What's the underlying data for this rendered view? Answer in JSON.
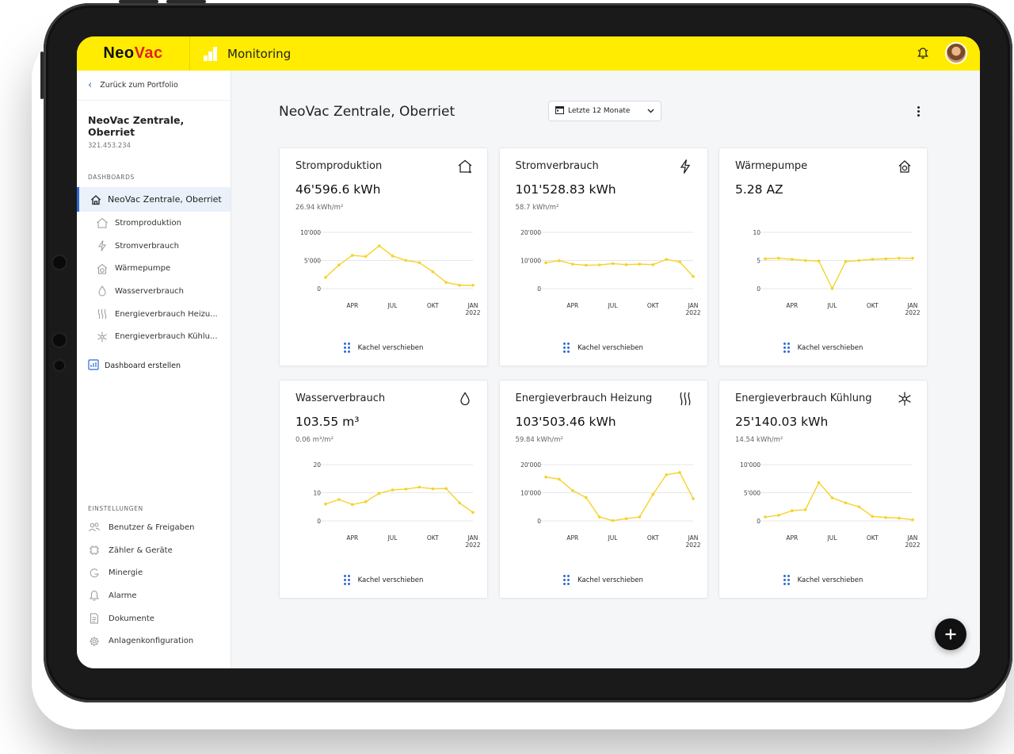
{
  "app": {
    "logo_neo": "Neo",
    "logo_vac": "Vac",
    "title": "Monitoring",
    "brand_color": "#ffec00",
    "accent_color": "#2e6ad1",
    "chart_color": "#f5d32a"
  },
  "sidebar": {
    "back_label": "Zurück zum Portfolio",
    "property_name": "NeoVac Zentrale, Oberriet",
    "property_id": "321.453.234",
    "dashboards_label": "DASHBOARDS",
    "active_dashboard": "NeoVac Zentrale, Oberriet",
    "items": [
      {
        "label": "Stromproduktion",
        "icon": "house-outline-icon"
      },
      {
        "label": "Stromverbrauch",
        "icon": "lightning-icon"
      },
      {
        "label": "Wärmepumpe",
        "icon": "heat-pump-icon"
      },
      {
        "label": "Wasserverbrauch",
        "icon": "water-drop-icon"
      },
      {
        "label": "Energieverbrauch Heizu...",
        "icon": "heating-waves-icon"
      },
      {
        "label": "Energieverbrauch Kühlu...",
        "icon": "snowflake-icon"
      }
    ],
    "create_label": "Dashboard erstellen",
    "settings_label": "EINSTELLUNGEN",
    "settings": [
      {
        "label": "Benutzer & Freigaben",
        "icon": "users-icon"
      },
      {
        "label": "Zähler & Geräte",
        "icon": "meter-chip-icon"
      },
      {
        "label": "Minergie",
        "icon": "minergie-icon"
      },
      {
        "label": "Alarme",
        "icon": "alarm-bell-icon"
      },
      {
        "label": "Dokumente",
        "icon": "document-icon"
      },
      {
        "label": "Anlagenkonfiguration",
        "icon": "gear-icon"
      }
    ]
  },
  "main": {
    "title": "NeoVac Zentrale, Oberriet",
    "date_range": "Letzte 12 Monate",
    "move_label": "Kachel verschieben"
  },
  "chart_data": [
    {
      "type": "line",
      "title": "Stromproduktion",
      "value": "46'596.6 kWh",
      "subvalue": "26.94 kWh/m²",
      "x_ticks": [
        "APR",
        "JUL",
        "OKT",
        "JAN 2022"
      ],
      "y_ticks": [
        "0",
        "5'000",
        "10'000"
      ],
      "ylim": [
        0,
        10000
      ],
      "values": [
        2000,
        4200,
        5900,
        5700,
        7600,
        5800,
        5000,
        4600,
        3000,
        1100,
        600,
        600
      ]
    },
    {
      "type": "line",
      "title": "Stromverbrauch",
      "value": "101'528.83 kWh",
      "subvalue": "58.7 kWh/m²",
      "x_ticks": [
        "APR",
        "JUL",
        "OKT",
        "JAN 2022"
      ],
      "y_ticks": [
        "0",
        "10'000",
        "20'000"
      ],
      "ylim": [
        0,
        20000
      ],
      "values": [
        9200,
        9900,
        8700,
        8300,
        8400,
        8900,
        8500,
        8700,
        8500,
        10400,
        9500,
        4300
      ]
    },
    {
      "type": "line",
      "title": "Wärmepumpe",
      "value": "5.28 AZ",
      "subvalue": "",
      "x_ticks": [
        "APR",
        "JUL",
        "OKT",
        "JAN 2022"
      ],
      "y_ticks": [
        "0",
        "5",
        "10"
      ],
      "ylim": [
        0,
        10
      ],
      "values": [
        5.3,
        5.4,
        5.2,
        5.0,
        4.9,
        0.0,
        4.8,
        5.0,
        5.2,
        5.3,
        5.4,
        5.4
      ]
    },
    {
      "type": "line",
      "title": "Wasserverbrauch",
      "value": "103.55 m³",
      "subvalue": "0.06 m³/m²",
      "x_ticks": [
        "APR",
        "JUL",
        "OKT",
        "JAN 2022"
      ],
      "y_ticks": [
        "0",
        "10",
        "20"
      ],
      "ylim": [
        0,
        20
      ],
      "values": [
        6.0,
        7.6,
        5.8,
        6.8,
        9.8,
        11.0,
        11.3,
        12.0,
        11.4,
        11.5,
        6.4,
        3.0
      ]
    },
    {
      "type": "line",
      "title": "Energieverbrauch Heizung",
      "value": "103'503.46 kWh",
      "subvalue": "59.84 kWh/m²",
      "x_ticks": [
        "APR",
        "JUL",
        "OKT",
        "JAN 2022"
      ],
      "y_ticks": [
        "0",
        "10'000",
        "20'000"
      ],
      "ylim": [
        0,
        20000
      ],
      "values": [
        15600,
        14800,
        10800,
        8300,
        1400,
        100,
        800,
        1400,
        9400,
        16400,
        17200,
        7900
      ]
    },
    {
      "type": "line",
      "title": "Energieverbrauch Kühlung",
      "value": "25'140.03 kWh",
      "subvalue": "14.54 kWh/m²",
      "x_ticks": [
        "APR",
        "JUL",
        "OKT",
        "JAN 2022"
      ],
      "y_ticks": [
        "0",
        "5'000",
        "10'000"
      ],
      "ylim": [
        0,
        10000
      ],
      "values": [
        700,
        1000,
        1800,
        2000,
        6800,
        4100,
        3200,
        2500,
        800,
        600,
        500,
        200
      ]
    }
  ]
}
